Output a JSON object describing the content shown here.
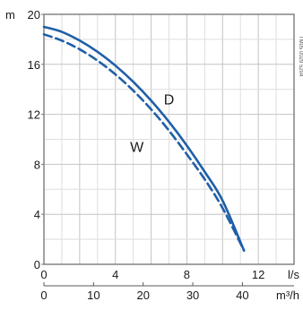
{
  "chart_data": {
    "type": "line",
    "y_unit": "m",
    "x_unit_primary": "l/s",
    "x_unit_secondary": "m³/h",
    "x_primary_ticks": [
      0,
      4,
      8,
      12
    ],
    "x_primary_range": [
      0,
      14
    ],
    "x_secondary_ticks": [
      0,
      10,
      20,
      30,
      40
    ],
    "x_secondary_range": [
      0,
      50.4
    ],
    "y_ticks": [
      0,
      4,
      8,
      12,
      16,
      20
    ],
    "ylim": [
      0,
      20
    ],
    "grid": true,
    "series": [
      {
        "name": "D",
        "style": "solid",
        "color": "#1f5fa8",
        "points": [
          [
            0,
            19.0
          ],
          [
            1,
            18.6
          ],
          [
            2,
            17.9
          ],
          [
            3,
            17.0
          ],
          [
            4,
            15.9
          ],
          [
            5,
            14.6
          ],
          [
            6,
            13.1
          ],
          [
            7,
            11.4
          ],
          [
            8,
            9.5
          ],
          [
            9,
            7.4
          ],
          [
            10,
            5.1
          ],
          [
            11.2,
            1.1
          ]
        ]
      },
      {
        "name": "W",
        "style": "dashed",
        "color": "#1f5fa8",
        "points": [
          [
            0,
            18.4
          ],
          [
            1,
            17.9
          ],
          [
            2,
            17.2
          ],
          [
            3,
            16.3
          ],
          [
            4,
            15.2
          ],
          [
            5,
            13.9
          ],
          [
            6,
            12.4
          ],
          [
            7,
            10.7
          ],
          [
            8,
            8.8
          ],
          [
            9,
            6.8
          ],
          [
            10,
            4.5
          ],
          [
            11.2,
            1.1
          ]
        ]
      }
    ],
    "curve_labels": [
      {
        "text": "D",
        "x": 7.0,
        "y": 12.8
      },
      {
        "text": "W",
        "x": 5.2,
        "y": 9.0
      }
    ],
    "side_code": "TM05 0029 5204"
  }
}
